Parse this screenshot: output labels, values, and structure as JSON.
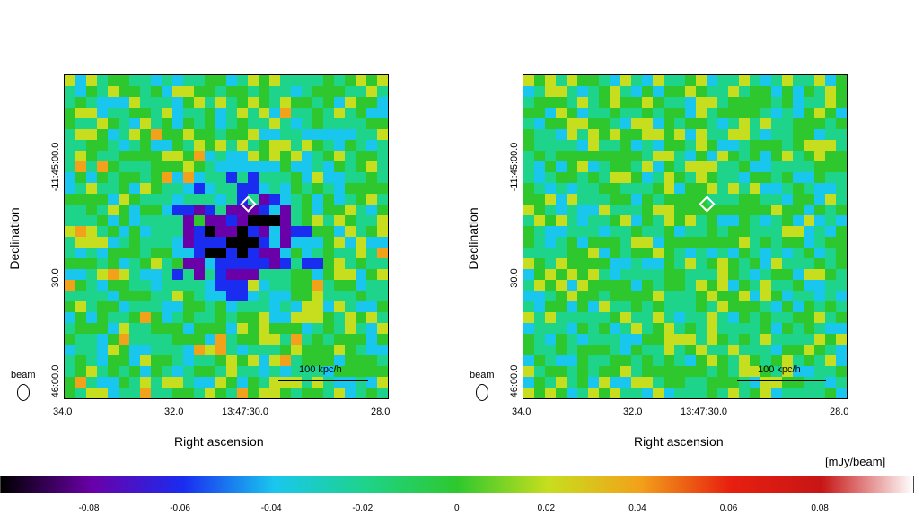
{
  "panels": [
    {
      "id": "left",
      "diamond": true,
      "xlabel": "Right ascension",
      "ylabel": "Declination",
      "xticks": [
        "34.0",
        "32.0",
        "13:47:30.0",
        "28.0"
      ],
      "yticks": [
        "-11:45:00.0",
        "30.0",
        "46:00.0"
      ],
      "scalebar_label": "100 kpc/h",
      "beam_label": "beam"
    },
    {
      "id": "right",
      "diamond": true,
      "xlabel": "Right ascension",
      "ylabel": "Declination",
      "xticks": [
        "34.0",
        "32.0",
        "13:47:30.0",
        "28.0"
      ],
      "yticks": [
        "-11:45:00.0",
        "30.0",
        "46:00.0"
      ],
      "scalebar_label": "100 kpc/h",
      "beam_label": "beam"
    }
  ],
  "colorbar": {
    "unit": "[mJy/beam]",
    "ticks": [
      "-0.08",
      "-0.06",
      "-0.04",
      "-0.02",
      "0",
      "0.02",
      "0.04",
      "0.06",
      "0.08"
    ],
    "range": [
      -0.1,
      0.1
    ],
    "colors": [
      "#000000",
      "#6a00a8",
      "#1a2cf0",
      "#19c7ee",
      "#1ed38a",
      "#2ec82e",
      "#c7de1e",
      "#f2a21a",
      "#e71f0f",
      "#c71616",
      "#ffffff"
    ]
  },
  "chart_data": {
    "type": "heatmap",
    "panels": 2,
    "colormap": [
      "#000000",
      "#6a00a8",
      "#1a2cf0",
      "#19c7ee",
      "#1ed38a",
      "#2ec82e",
      "#c7de1e",
      "#f2a21a",
      "#e71f0f",
      "#c71616",
      "#ffffff"
    ],
    "value_range": [
      -0.1,
      0.1
    ],
    "unit": "[mJy/beam]",
    "xlabel": "Right ascension",
    "ylabel": "Declination",
    "xticks": [
      "34.0",
      "32.0",
      "13:47:30.0",
      "28.0"
    ],
    "yticks": [
      "-11:45:00.0",
      "30.0",
      "46:00.0"
    ],
    "left_panel_feature": "negative decrement of about -0.08 mJy/beam near the cluster center",
    "right_panel_feature": "residual noise map near 0 mJy/beam",
    "scalebar": "100 kpc/h"
  }
}
